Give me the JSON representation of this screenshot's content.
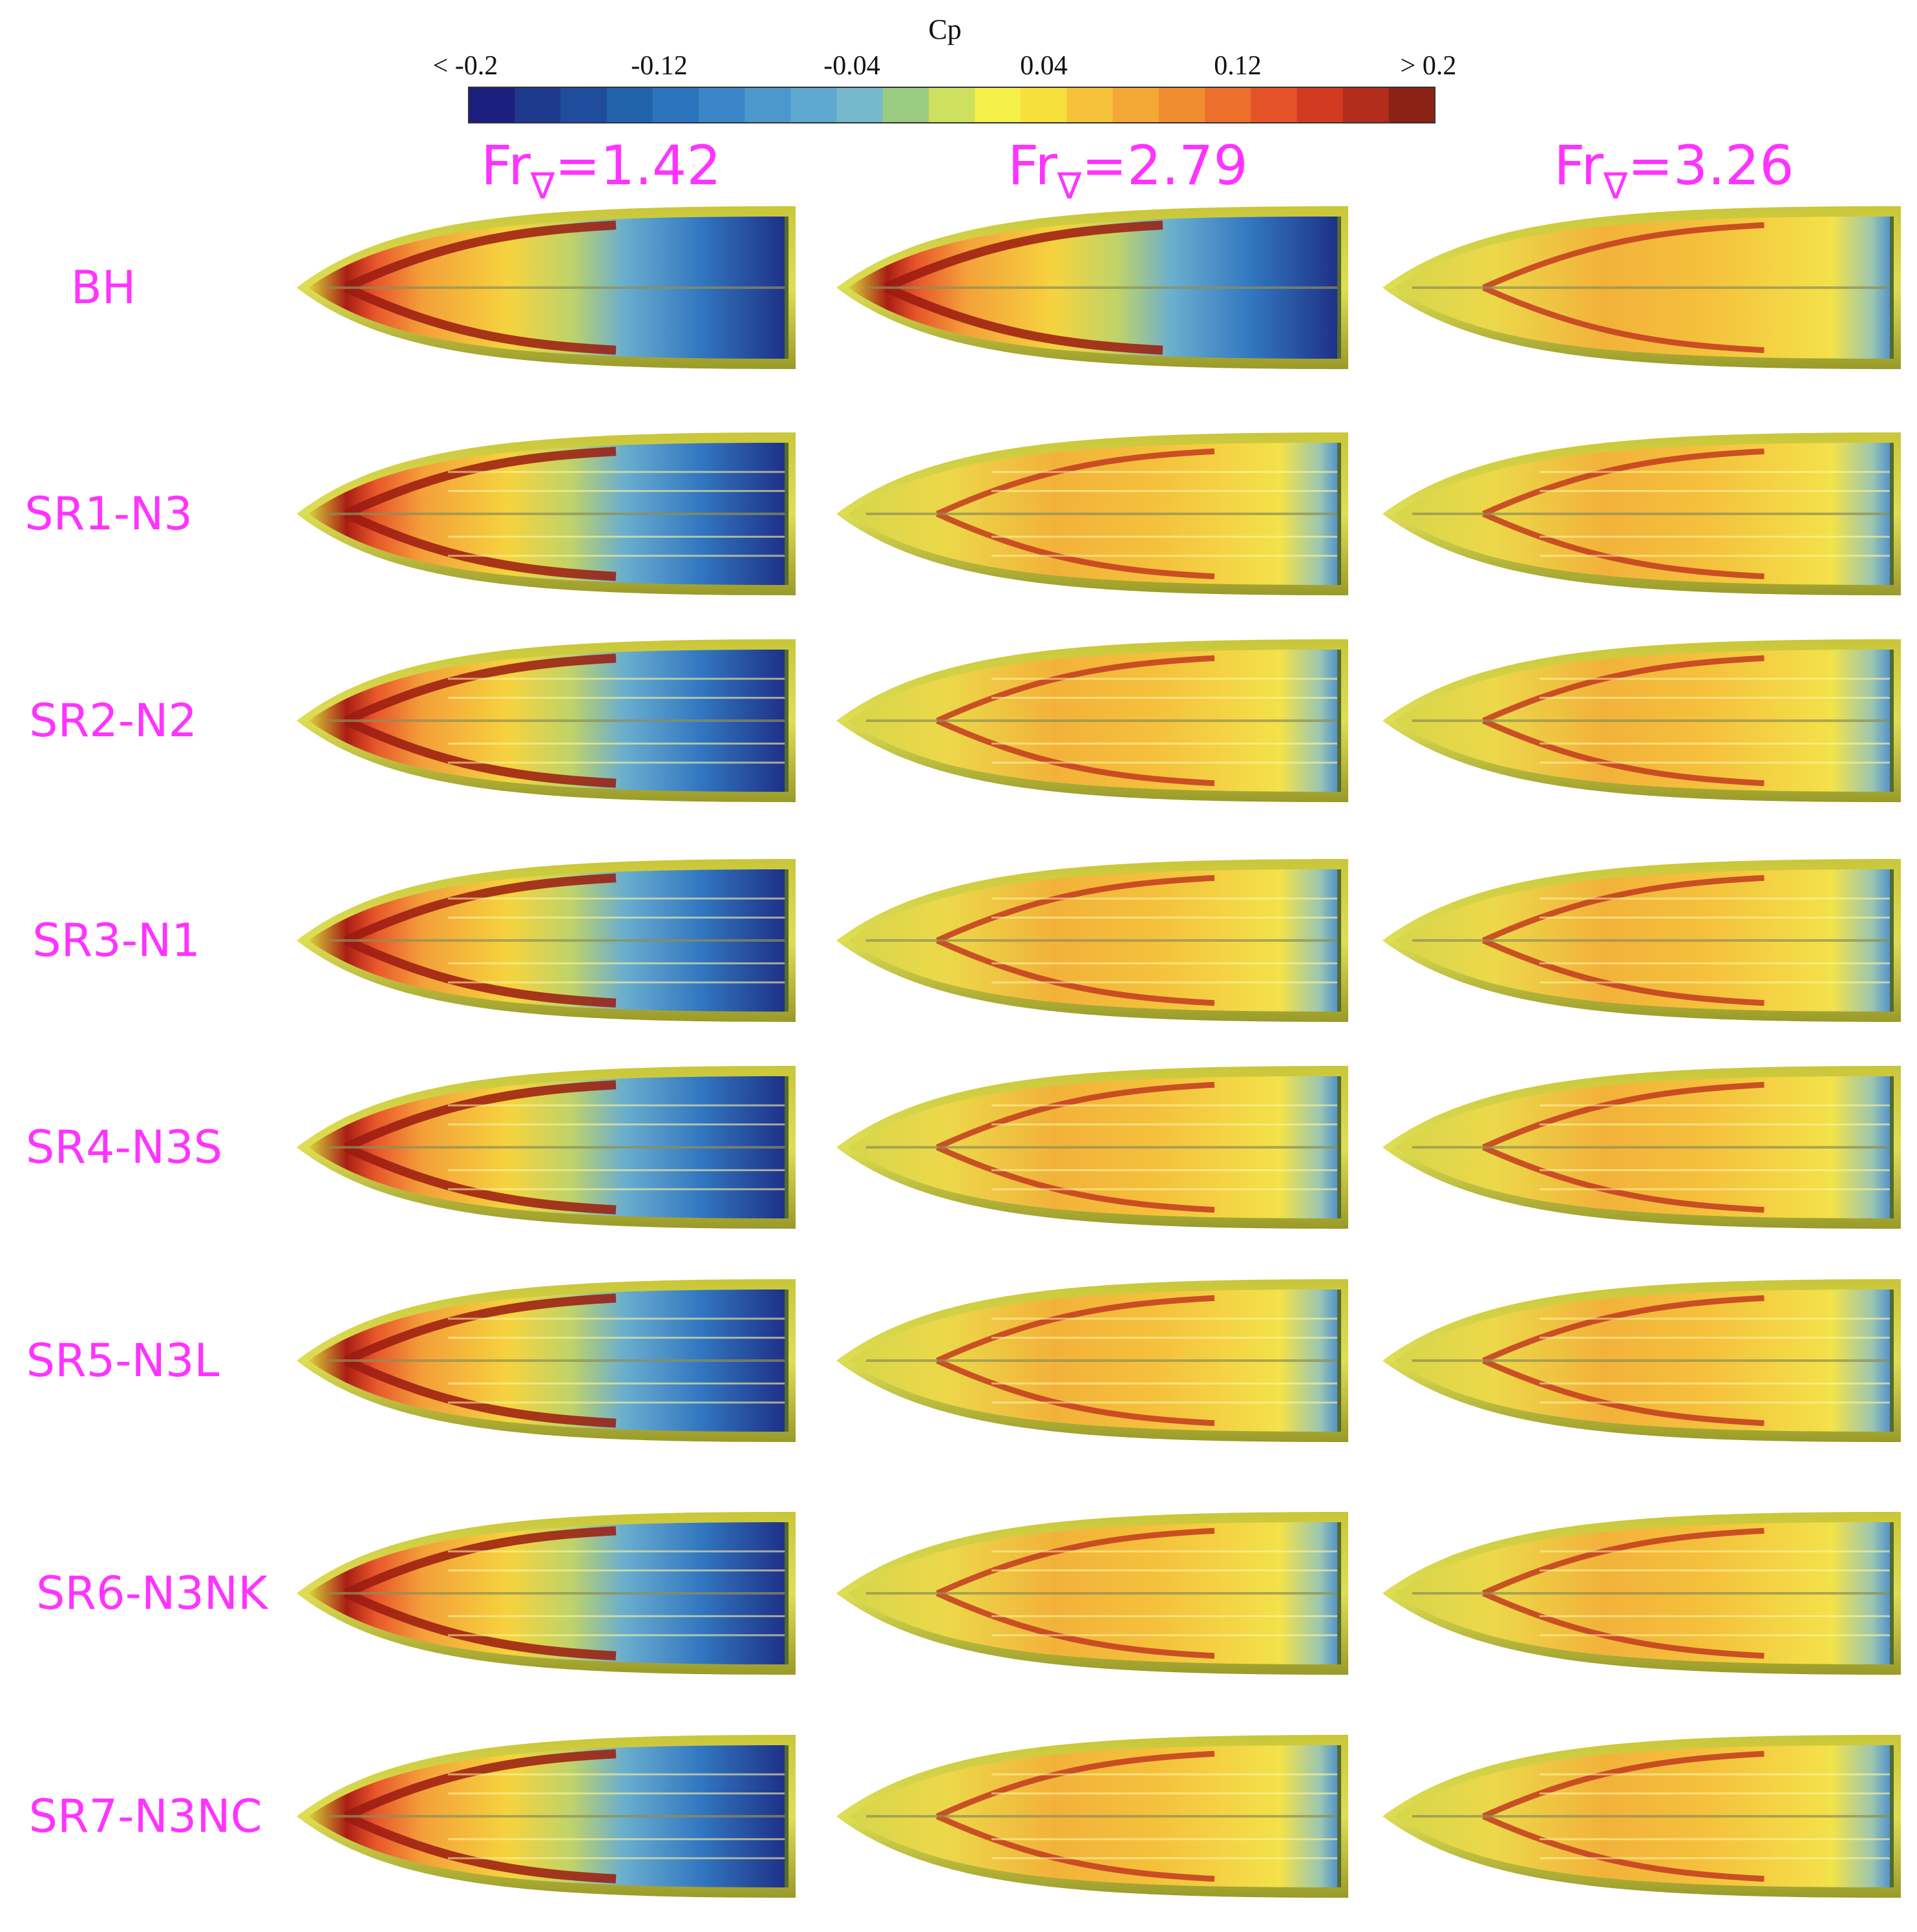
{
  "colorbar": {
    "title": "Cp",
    "tick_labels": [
      "< -0.2",
      "-0.12",
      "-0.04",
      "0.04",
      "0.12",
      "> 0.2"
    ],
    "range": [
      -0.2,
      0.2
    ],
    "colors": [
      "#1c1f7e",
      "#1e3a8c",
      "#1f4c9c",
      "#2163ab",
      "#2b74bd",
      "#3a86c7",
      "#4c98cd",
      "#5fa8cf",
      "#76b8cc",
      "#99cc80",
      "#cde060",
      "#f5ef4a",
      "#f7df3c",
      "#f6c23a",
      "#f4a836",
      "#f18d31",
      "#ec6f2c",
      "#e45428",
      "#d23b22",
      "#b32c1c",
      "#8a2216"
    ]
  },
  "columns": [
    {
      "label": "Fr",
      "sub": "∇",
      "value": "=1.42"
    },
    {
      "label": "Fr",
      "sub": "∇",
      "value": "=2.79"
    },
    {
      "label": "Fr",
      "sub": "∇",
      "value": "=3.26"
    }
  ],
  "rows": [
    "BH",
    "SR1-N3",
    "SR2-N2",
    "SR3-N1",
    "SR4-N3S",
    "SR5-N3L",
    "SR6-N3NK",
    "SR7-N3NC"
  ]
}
